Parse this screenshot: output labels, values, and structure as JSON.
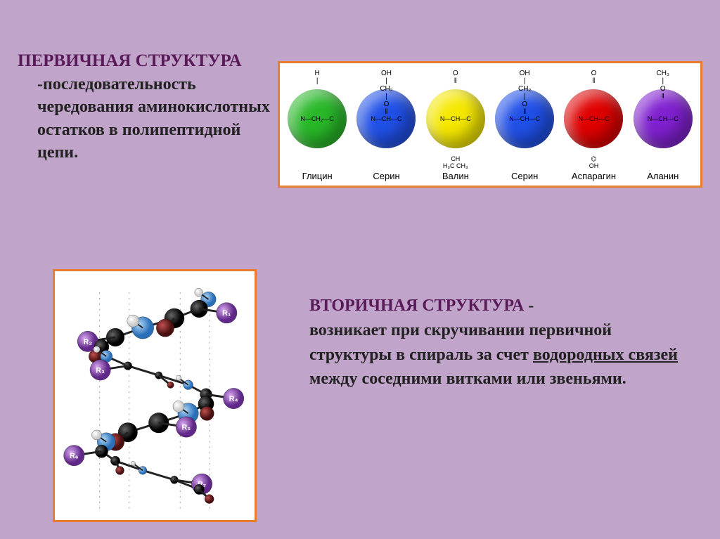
{
  "primary": {
    "title": "ПЕРВИЧНАЯ СТРУКТУРА",
    "body": "-последовательность чередования аминокислотных остатков в полипептидной цепи."
  },
  "secondary": {
    "title": "ВТОРИЧНАЯ СТРУКТУРА",
    "body_parts": {
      "dash": " - ",
      "p1": "возникает при скручивании первичной структуры в спираль за счет ",
      "u": "водородных связей",
      "p2": " между соседними витками или звеньями."
    }
  },
  "amino_panel": {
    "border_color": "#e87c2f",
    "bg": "#ffffff",
    "items": [
      {
        "label": "Глицин",
        "color": "#28b828",
        "top_lines": [
          "H",
          "|"
        ],
        "mid": "N—CH₂—C",
        "below": ""
      },
      {
        "label": "Серин",
        "color": "#2050e8",
        "top_lines": [
          "OH",
          "|",
          "CH₂",
          "|",
          "O",
          "‖"
        ],
        "mid": "N—CH—C",
        "below": ""
      },
      {
        "label": "Валин",
        "color": "#f5e800",
        "top_lines": [
          "O",
          "‖"
        ],
        "mid": "N—CH—C",
        "below": "CH\nH₃C  CH₃"
      },
      {
        "label": "Серин",
        "color": "#2050e8",
        "top_lines": [
          "OH",
          "|",
          "CH₂",
          "|",
          "O",
          "‖"
        ],
        "mid": "N—CH—C",
        "below": ""
      },
      {
        "label": "Аспарагин",
        "color": "#e00000",
        "top_lines": [
          "O",
          "‖"
        ],
        "mid": "N—CH—C",
        "below": "⌬\nOH"
      },
      {
        "label": "Аланин",
        "color": "#8020d0",
        "top_lines": [
          "CH₃",
          "|",
          "O",
          "‖"
        ],
        "mid": "N—CH—C",
        "below": ""
      }
    ]
  },
  "helix": {
    "border_color": "#e87c2f",
    "bg": "#ffffff",
    "colors": {
      "carbon": "#1a1a1a",
      "nitrogen": "#4a90d8",
      "oxygen": "#722020",
      "hydrogen": "#ffffff",
      "rgroup": "#8040a0",
      "hbond": "#999999"
    },
    "r_labels": [
      "R₁",
      "R₂",
      "R₃",
      "R₄",
      "R₅",
      "R₆",
      "R₇"
    ]
  },
  "slide_bg": "#c0a4c9"
}
